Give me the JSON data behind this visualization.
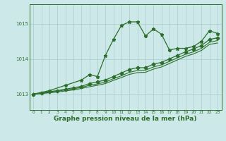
{
  "bg_color": "#cce8e8",
  "grid_color": "#aacccc",
  "line_color": "#2d6e2d",
  "xlabel": "Graphe pression niveau de la mer (hPa)",
  "xlabel_fontsize": 6.5,
  "yticks": [
    1013,
    1014,
    1015
  ],
  "xticks": [
    0,
    1,
    2,
    3,
    4,
    5,
    6,
    7,
    8,
    9,
    10,
    11,
    12,
    13,
    14,
    15,
    16,
    17,
    18,
    19,
    20,
    21,
    22,
    23
  ],
  "xlim": [
    -0.5,
    23.5
  ],
  "ylim": [
    1012.55,
    1015.55
  ],
  "series": [
    {
      "x": [
        0,
        2,
        4,
        6,
        7,
        8,
        9,
        10,
        11,
        12,
        13,
        14,
        15,
        16,
        17,
        18,
        19,
        20,
        21,
        22,
        23
      ],
      "y": [
        1013.0,
        1013.1,
        1013.25,
        1013.4,
        1013.55,
        1013.5,
        1014.1,
        1014.55,
        1014.95,
        1015.05,
        1015.05,
        1014.65,
        1014.85,
        1014.7,
        1014.25,
        1014.3,
        1014.3,
        1014.35,
        1014.5,
        1014.8,
        1014.72
      ],
      "marker": "*",
      "markersize": 3.5,
      "linewidth": 0.9
    },
    {
      "x": [
        0,
        1,
        2,
        3,
        4,
        5,
        6,
        7,
        8,
        9,
        10,
        11,
        12,
        13,
        14,
        15,
        16,
        17,
        18,
        19,
        20,
        21,
        22,
        23
      ],
      "y": [
        1013.0,
        1013.03,
        1013.07,
        1013.1,
        1013.14,
        1013.18,
        1013.22,
        1013.3,
        1013.35,
        1013.4,
        1013.5,
        1013.6,
        1013.7,
        1013.75,
        1013.75,
        1013.85,
        1013.9,
        1014.0,
        1014.1,
        1014.2,
        1014.28,
        1014.38,
        1014.55,
        1014.6
      ],
      "marker": "D",
      "markersize": 2.5,
      "linewidth": 0.9
    },
    {
      "x": [
        0,
        1,
        2,
        3,
        4,
        5,
        6,
        7,
        8,
        9,
        10,
        11,
        12,
        13,
        14,
        15,
        16,
        17,
        18,
        19,
        20,
        21,
        22,
        23
      ],
      "y": [
        1013.0,
        1013.02,
        1013.05,
        1013.08,
        1013.12,
        1013.15,
        1013.19,
        1013.25,
        1013.29,
        1013.34,
        1013.44,
        1013.52,
        1013.62,
        1013.67,
        1013.68,
        1013.77,
        1013.83,
        1013.93,
        1014.03,
        1014.13,
        1014.2,
        1014.3,
        1014.47,
        1014.52
      ],
      "marker": null,
      "markersize": 0,
      "linewidth": 0.8
    },
    {
      "x": [
        0,
        1,
        2,
        3,
        4,
        5,
        6,
        7,
        8,
        9,
        10,
        11,
        12,
        13,
        14,
        15,
        16,
        17,
        18,
        19,
        20,
        21,
        22,
        23
      ],
      "y": [
        1013.0,
        1013.015,
        1013.04,
        1013.06,
        1013.09,
        1013.12,
        1013.16,
        1013.21,
        1013.25,
        1013.3,
        1013.39,
        1013.47,
        1013.56,
        1013.61,
        1013.62,
        1013.71,
        1013.77,
        1013.87,
        1013.97,
        1014.07,
        1014.14,
        1014.24,
        1014.41,
        1014.45
      ],
      "marker": null,
      "markersize": 0,
      "linewidth": 0.8
    }
  ]
}
